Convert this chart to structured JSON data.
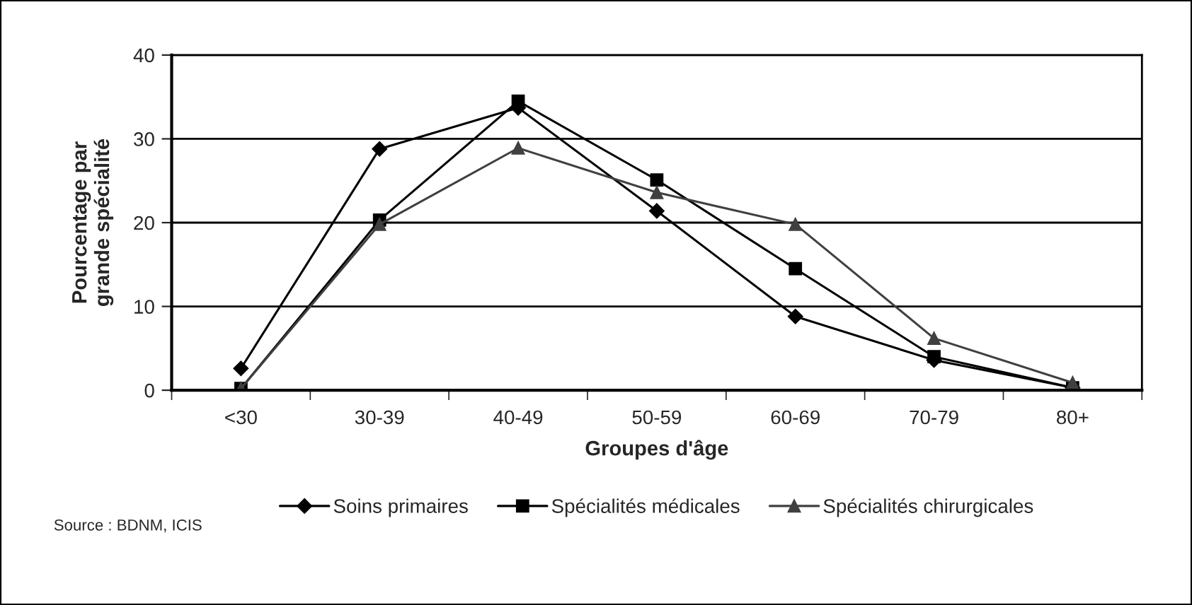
{
  "chart_data": {
    "type": "line",
    "xlabel": "Groupes d'âge",
    "ylabel": "Pourcentage par\ngrande spécialité",
    "categories": [
      "<30",
      "30-39",
      "40-49",
      "50-59",
      "60-69",
      "70-79",
      "80+"
    ],
    "series": [
      {
        "name": "Soins primaires",
        "color": "#000000",
        "marker": "diamond",
        "values": [
          2.6,
          28.8,
          33.7,
          21.4,
          8.8,
          3.6,
          0.3
        ]
      },
      {
        "name": "Spécialités médicales",
        "color": "#000000",
        "marker": "square",
        "values": [
          0.2,
          20.3,
          34.5,
          25.1,
          14.5,
          4.0,
          0.3
        ]
      },
      {
        "name": "Spécialités chirurgicales",
        "color": "#404040",
        "marker": "triangle",
        "values": [
          0.2,
          19.8,
          28.9,
          23.6,
          19.8,
          6.2,
          0.9
        ]
      }
    ],
    "ylim": [
      0,
      40
    ],
    "yticks": [
      0,
      10,
      20,
      30,
      40
    ],
    "grid": "y",
    "legend": "bottom",
    "annotations": [
      "Source : BDNM, ICIS"
    ]
  }
}
